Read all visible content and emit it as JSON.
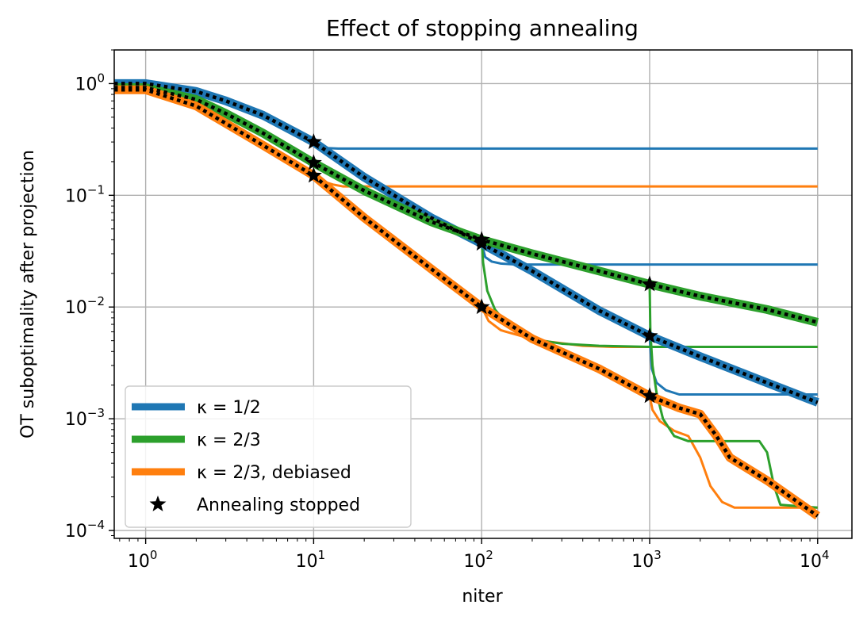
{
  "chart_data": {
    "type": "line",
    "title": "Effect of stopping annealing",
    "xlabel": "niter",
    "ylabel": "OT suboptimality after projection",
    "xscale": "log",
    "yscale": "log",
    "xlim": [
      0.65,
      16000
    ],
    "ylim": [
      8.5e-05,
      2.0
    ],
    "x_ticks": [
      {
        "base": "10",
        "exp": "0"
      },
      {
        "base": "10",
        "exp": "1"
      },
      {
        "base": "10",
        "exp": "2"
      },
      {
        "base": "10",
        "exp": "3"
      },
      {
        "base": "10",
        "exp": "4"
      }
    ],
    "y_ticks": [
      {
        "base": "10",
        "exp": "0"
      },
      {
        "base": "10",
        "exp": "−1"
      },
      {
        "base": "10",
        "exp": "−2"
      },
      {
        "base": "10",
        "exp": "−3"
      },
      {
        "base": "10",
        "exp": "−4"
      }
    ],
    "grid": true,
    "legend_position": "lower-left",
    "colors": {
      "blue": "#1f77b4",
      "green": "#2ca02c",
      "orange": "#ff7f0e",
      "black": "#000000"
    },
    "legend": [
      {
        "text": "κ = 1/2",
        "color": "#1f77b4",
        "kind": "line"
      },
      {
        "text": "κ = 2/3",
        "color": "#2ca02c",
        "kind": "line"
      },
      {
        "text": "κ = 2/3, debiased",
        "color": "#ff7f0e",
        "kind": "line"
      },
      {
        "text": "Annealing stopped",
        "color": "#000000",
        "kind": "marker"
      }
    ],
    "series": [
      {
        "name": "κ = 1/2",
        "color": "#1f77b4",
        "style": "thick",
        "points": [
          [
            0.65,
            1.0
          ],
          [
            1,
            1.0
          ],
          [
            2,
            0.85
          ],
          [
            3,
            0.7
          ],
          [
            5,
            0.52
          ],
          [
            10,
            0.3
          ],
          [
            20,
            0.145
          ],
          [
            50,
            0.063
          ],
          [
            100,
            0.037
          ],
          [
            200,
            0.021
          ],
          [
            500,
            0.0093
          ],
          [
            1000,
            0.0055
          ],
          [
            2000,
            0.0036
          ],
          [
            5000,
            0.0021
          ],
          [
            10000,
            0.0014
          ]
        ]
      },
      {
        "name": "κ = 2/3",
        "color": "#2ca02c",
        "style": "thick",
        "points": [
          [
            0.65,
            0.92
          ],
          [
            1,
            0.92
          ],
          [
            2,
            0.72
          ],
          [
            3,
            0.54
          ],
          [
            5,
            0.36
          ],
          [
            10,
            0.195
          ],
          [
            20,
            0.11
          ],
          [
            50,
            0.058
          ],
          [
            100,
            0.04
          ],
          [
            200,
            0.03
          ],
          [
            500,
            0.021
          ],
          [
            1000,
            0.016
          ],
          [
            2000,
            0.0125
          ],
          [
            5000,
            0.0095
          ],
          [
            10000,
            0.0073
          ]
        ]
      },
      {
        "name": "κ = 2/3, debiased",
        "color": "#ff7f0e",
        "style": "thick",
        "points": [
          [
            0.65,
            0.88
          ],
          [
            1,
            0.88
          ],
          [
            2,
            0.63
          ],
          [
            3,
            0.44
          ],
          [
            5,
            0.28
          ],
          [
            10,
            0.15
          ],
          [
            20,
            0.063
          ],
          [
            50,
            0.022
          ],
          [
            100,
            0.01
          ],
          [
            200,
            0.0052
          ],
          [
            500,
            0.0028
          ],
          [
            1000,
            0.0016
          ],
          [
            1500,
            0.00125
          ],
          [
            2000,
            0.0011
          ],
          [
            2500,
            0.0007
          ],
          [
            3000,
            0.00045
          ],
          [
            5000,
            0.00028
          ],
          [
            10000,
            0.000135
          ]
        ]
      },
      {
        "name": "",
        "color": "#1f77b4",
        "style": "thin",
        "points": [
          [
            10,
            0.3
          ],
          [
            11,
            0.275
          ],
          [
            12,
            0.265
          ],
          [
            14,
            0.262
          ],
          [
            10000,
            0.262
          ]
        ]
      },
      {
        "name": "",
        "color": "#1f77b4",
        "style": "thin",
        "points": [
          [
            100,
            0.037
          ],
          [
            105,
            0.028
          ],
          [
            115,
            0.0255
          ],
          [
            130,
            0.0245
          ],
          [
            160,
            0.024
          ],
          [
            10000,
            0.024
          ]
        ]
      },
      {
        "name": "",
        "color": "#1f77b4",
        "style": "thin",
        "points": [
          [
            1000,
            0.0055
          ],
          [
            1030,
            0.0028
          ],
          [
            1100,
            0.0021
          ],
          [
            1250,
            0.0018
          ],
          [
            1500,
            0.00165
          ],
          [
            10000,
            0.00165
          ]
        ]
      },
      {
        "name": "",
        "color": "#ff7f0e",
        "style": "thin",
        "points": [
          [
            10,
            0.15
          ],
          [
            11,
            0.135
          ],
          [
            13,
            0.125
          ],
          [
            15,
            0.12
          ],
          [
            10000,
            0.12
          ]
        ]
      },
      {
        "name": "",
        "color": "#ff7f0e",
        "style": "thin",
        "points": [
          [
            100,
            0.01
          ],
          [
            110,
            0.0075
          ],
          [
            130,
            0.0062
          ],
          [
            180,
            0.0054
          ],
          [
            250,
            0.0049
          ],
          [
            400,
            0.0045
          ],
          [
            600,
            0.0044
          ],
          [
            10000,
            0.0044
          ]
        ]
      },
      {
        "name": "",
        "color": "#ff7f0e",
        "style": "thin",
        "points": [
          [
            1000,
            0.0016
          ],
          [
            1040,
            0.0012
          ],
          [
            1150,
            0.00095
          ],
          [
            1400,
            0.00078
          ],
          [
            1700,
            0.0007
          ],
          [
            2000,
            0.00045
          ],
          [
            2300,
            0.00025
          ],
          [
            2700,
            0.00018
          ],
          [
            3200,
            0.00016
          ],
          [
            10000,
            0.00016
          ]
        ]
      },
      {
        "name": "",
        "color": "#2ca02c",
        "style": "thin",
        "points": [
          [
            100,
            0.04
          ],
          [
            102,
            0.025
          ],
          [
            108,
            0.014
          ],
          [
            120,
            0.0095
          ],
          [
            140,
            0.0072
          ],
          [
            170,
            0.006
          ],
          [
            210,
            0.0051
          ],
          [
            300,
            0.0047
          ],
          [
            500,
            0.0045
          ],
          [
            1000,
            0.0044
          ],
          [
            10000,
            0.0044
          ]
        ]
      },
      {
        "name": "",
        "color": "#2ca02c",
        "style": "thin",
        "points": [
          [
            1000,
            0.016
          ],
          [
            1010,
            0.006
          ],
          [
            1040,
            0.003
          ],
          [
            1100,
            0.0017
          ],
          [
            1200,
            0.001
          ],
          [
            1400,
            0.0007
          ],
          [
            1700,
            0.00063
          ],
          [
            4500,
            0.00063
          ],
          [
            5000,
            0.0005
          ],
          [
            5500,
            0.00025
          ],
          [
            6000,
            0.00017
          ],
          [
            10000,
            0.00016
          ]
        ]
      }
    ],
    "annealing_stopped": [
      [
        10,
        0.3
      ],
      [
        10,
        0.195
      ],
      [
        10,
        0.15
      ],
      [
        100,
        0.037
      ],
      [
        100,
        0.04
      ],
      [
        100,
        0.01
      ],
      [
        1000,
        0.016
      ],
      [
        1000,
        0.0055
      ],
      [
        1000,
        0.0016
      ]
    ]
  }
}
